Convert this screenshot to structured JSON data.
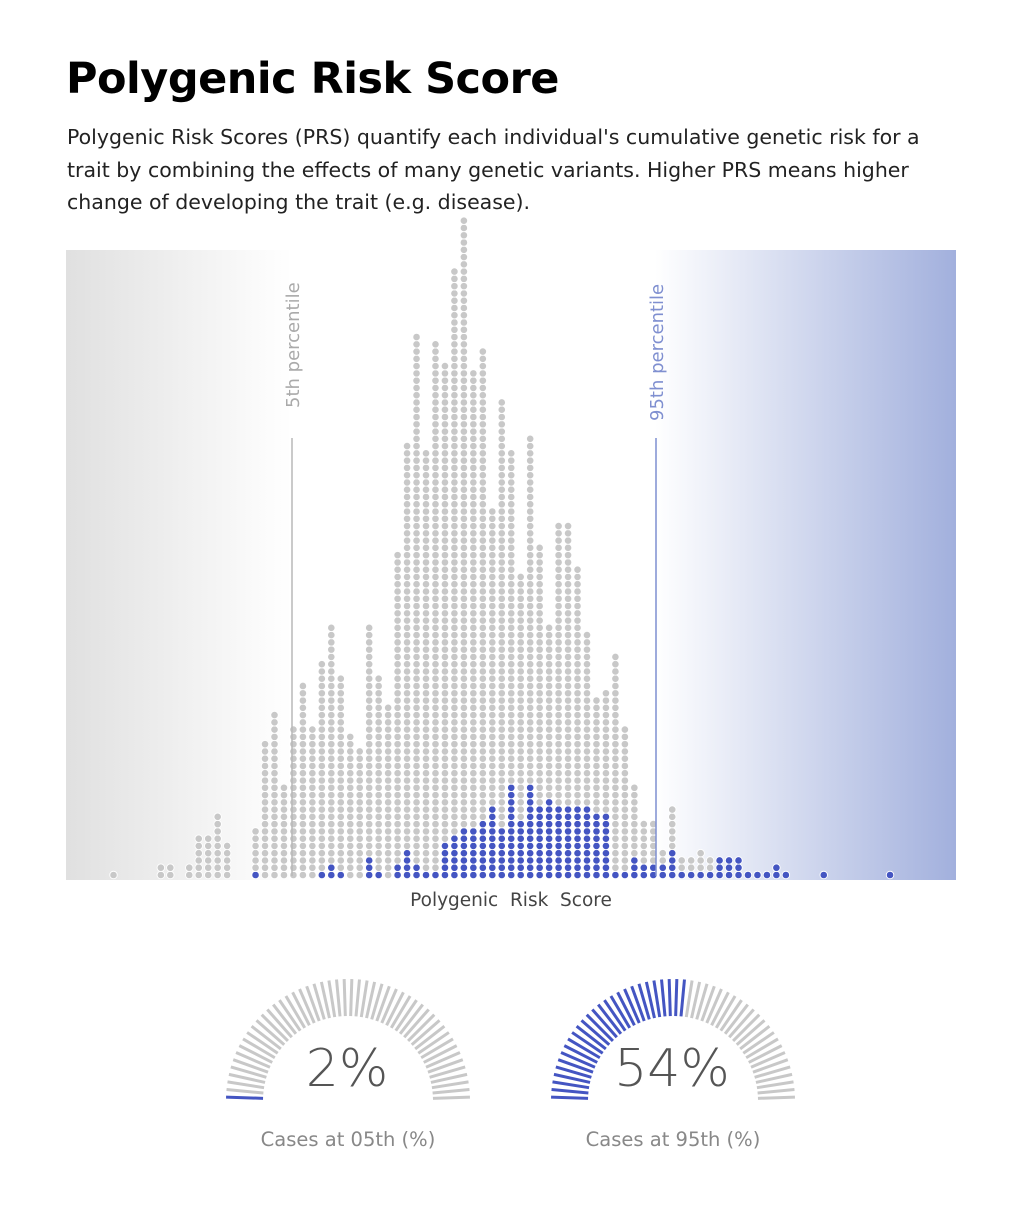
{
  "title": "Polygenic Risk Score",
  "description": "Polygenic Risk Scores (PRS) quantify each individual's cumulative genetic risk for a trait by combining the effects of many genetic variants. Higher PRS means higher change of developing the trait (e.g. disease).",
  "colors": {
    "case": "#4455c2",
    "control": "#c8c8c8",
    "low_band": "#e5e5e5",
    "high_band": "#a2b0dd",
    "p5_line": "#b8b8b8",
    "p95_line": "#7f8fd0",
    "gauge_active": "#4455c2",
    "gauge_inactive": "#c8c8c8"
  },
  "chart_data": [
    {
      "type": "dot-histogram",
      "xlabel": "Polygenic  Risk  Score",
      "ylabel": "",
      "x_unit": "bin index (left to right)",
      "reference_lines": [
        {
          "label": "5th percentile",
          "bin": 20
        },
        {
          "label": "95th percentile",
          "bin": 54
        }
      ],
      "series": [
        {
          "name": "cases",
          "values": [
            0,
            0,
            0,
            0,
            0,
            0,
            0,
            0,
            0,
            0,
            0,
            0,
            0,
            0,
            0,
            1,
            0,
            0,
            0,
            0,
            0,
            0,
            1,
            2,
            1,
            0,
            0,
            3,
            1,
            0,
            2,
            4,
            2,
            1,
            1,
            5,
            6,
            7,
            7,
            8,
            10,
            7,
            13,
            8,
            13,
            10,
            11,
            10,
            10,
            10,
            10,
            9,
            9,
            1,
            1,
            3,
            2,
            2,
            2,
            4,
            1,
            1,
            1,
            1,
            3,
            3,
            3,
            1,
            1,
            1,
            2,
            1,
            0,
            0,
            0,
            1,
            0,
            0,
            0,
            0,
            0,
            0,
            1,
            0
          ]
        },
        {
          "name": "controls",
          "values": [
            1,
            0,
            0,
            0,
            0,
            2,
            2,
            0,
            2,
            6,
            6,
            9,
            5,
            0,
            0,
            6,
            19,
            23,
            13,
            21,
            27,
            21,
            29,
            33,
            27,
            20,
            18,
            32,
            27,
            24,
            43,
            56,
            73,
            58,
            73,
            66,
            78,
            84,
            63,
            65,
            41,
            59,
            46,
            34,
            48,
            36,
            24,
            39,
            39,
            33,
            24,
            16,
            17,
            30,
            20,
            10,
            6,
            6,
            2,
            6,
            2,
            2,
            3,
            2,
            0,
            0,
            0,
            0,
            0,
            0,
            0,
            0,
            0,
            0,
            0,
            0,
            0,
            0,
            0,
            0,
            0,
            0,
            0,
            0
          ]
        }
      ]
    },
    {
      "type": "gauge",
      "label": "Cases at 05th (%)",
      "display": "2%",
      "value": 2,
      "max": 100
    },
    {
      "type": "gauge",
      "label": "Cases at 95th (%)",
      "display": "54%",
      "value": 54,
      "max": 100
    }
  ]
}
